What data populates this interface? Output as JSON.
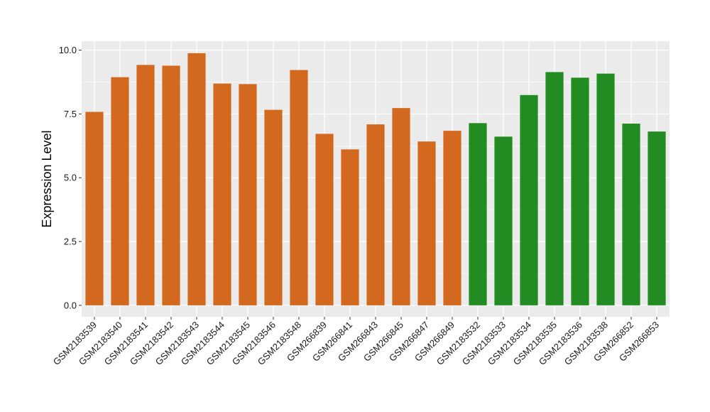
{
  "chart_data": {
    "type": "bar",
    "title": "",
    "xlabel": "",
    "ylabel": "Expression Level",
    "ylim": [
      -0.45,
      10.35
    ],
    "yticks": [
      0.0,
      2.5,
      5.0,
      7.5,
      10.0
    ],
    "ytick_labels": [
      "0.0",
      "2.5",
      "5.0",
      "7.5",
      "10.0"
    ],
    "grid": true,
    "legend": "none",
    "categories": [
      "GSM2183539",
      "GSM2183540",
      "GSM2183541",
      "GSM2183542",
      "GSM2183543",
      "GSM2183544",
      "GSM2183545",
      "GSM2183546",
      "GSM2183548",
      "GSM266839",
      "GSM266841",
      "GSM266843",
      "GSM266845",
      "GSM266847",
      "GSM266849",
      "GSM2183532",
      "GSM2183533",
      "GSM2183534",
      "GSM2183535",
      "GSM2183536",
      "GSM2183538",
      "GSM266852",
      "GSM266853"
    ],
    "values": [
      7.58,
      8.94,
      9.42,
      9.39,
      9.88,
      8.69,
      8.67,
      7.66,
      9.22,
      6.72,
      6.11,
      7.09,
      7.73,
      6.42,
      6.84,
      7.14,
      6.61,
      8.24,
      9.14,
      8.92,
      9.08,
      7.12,
      6.81
    ],
    "bar_colors": [
      "#D2691E",
      "#D2691E",
      "#D2691E",
      "#D2691E",
      "#D2691E",
      "#D2691E",
      "#D2691E",
      "#D2691E",
      "#D2691E",
      "#D2691E",
      "#D2691E",
      "#D2691E",
      "#D2691E",
      "#D2691E",
      "#D2691E",
      "#228B22",
      "#228B22",
      "#228B22",
      "#228B22",
      "#228B22",
      "#228B22",
      "#228B22",
      "#228B22"
    ],
    "panel_background": "#EBEBEB",
    "grid_color": "#FFFFFF"
  }
}
